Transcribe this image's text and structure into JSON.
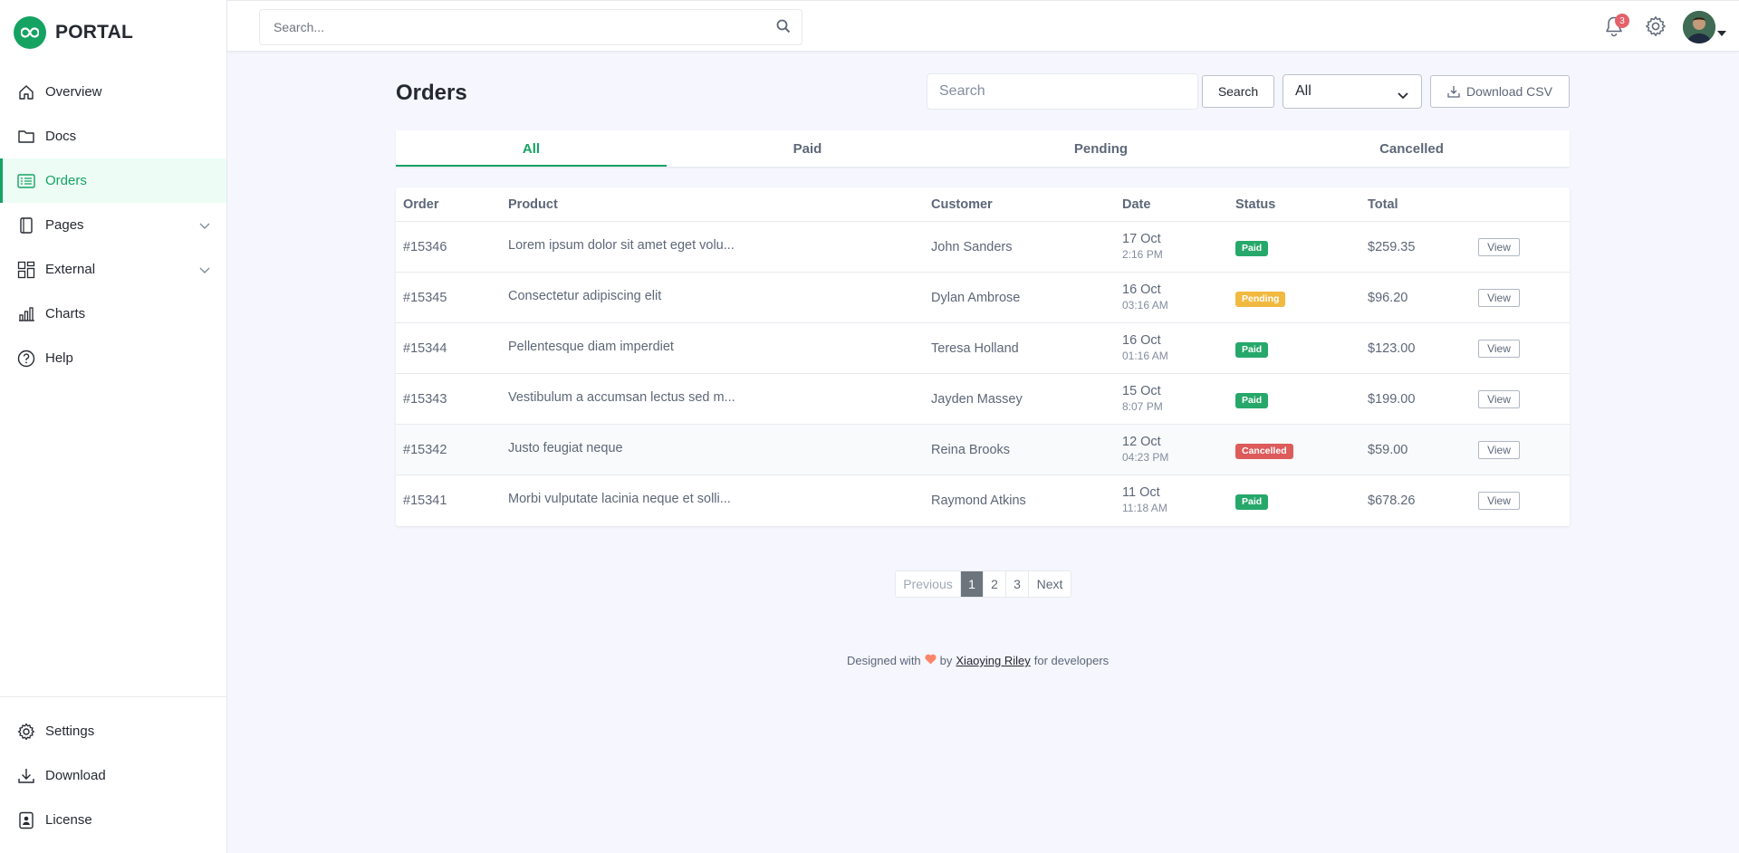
{
  "brand": {
    "name": "PORTAL"
  },
  "colors": {
    "accent": "#15a362",
    "paid": "#27a86b",
    "pending": "#f2b940",
    "cancelled": "#dd5b5b",
    "notification": "#e4626a"
  },
  "sidebar": {
    "items": [
      {
        "label": "Overview",
        "icon": "home-icon"
      },
      {
        "label": "Docs",
        "icon": "folder-icon"
      },
      {
        "label": "Orders",
        "icon": "list-icon",
        "active": true
      },
      {
        "label": "Pages",
        "icon": "pages-icon",
        "expandable": true
      },
      {
        "label": "External",
        "icon": "grid-icon",
        "expandable": true
      },
      {
        "label": "Charts",
        "icon": "bar-chart-icon"
      },
      {
        "label": "Help",
        "icon": "question-icon"
      }
    ],
    "footer_items": [
      {
        "label": "Settings",
        "icon": "gear-icon"
      },
      {
        "label": "Download",
        "icon": "download-icon"
      },
      {
        "label": "License",
        "icon": "license-icon"
      }
    ]
  },
  "header": {
    "search_placeholder": "Search...",
    "notification_count": "3"
  },
  "main": {
    "title": "Orders",
    "search_placeholder": "Search",
    "search_button": "Search",
    "filter_value": "All",
    "download_button": "Download CSV",
    "tabs": [
      {
        "label": "All",
        "active": true
      },
      {
        "label": "Paid"
      },
      {
        "label": "Pending"
      },
      {
        "label": "Cancelled"
      }
    ],
    "columns": [
      "Order",
      "Product",
      "Customer",
      "Date",
      "Status",
      "Total"
    ],
    "rows": [
      {
        "order": "#15346",
        "product": "Lorem ipsum dolor sit amet eget volu...",
        "customer": "John Sanders",
        "date": "17 Oct",
        "time": "2:16 PM",
        "status": "Paid",
        "total": "$259.35",
        "action": "View"
      },
      {
        "order": "#15345",
        "product": "Consectetur adipiscing elit",
        "customer": "Dylan Ambrose",
        "date": "16 Oct",
        "time": "03:16 AM",
        "status": "Pending",
        "total": "$96.20",
        "action": "View"
      },
      {
        "order": "#15344",
        "product": "Pellentesque diam imperdiet",
        "customer": "Teresa Holland",
        "date": "16 Oct",
        "time": "01:16 AM",
        "status": "Paid",
        "total": "$123.00",
        "action": "View"
      },
      {
        "order": "#15343",
        "product": "Vestibulum a accumsan lectus sed m...",
        "customer": "Jayden Massey",
        "date": "15 Oct",
        "time": "8:07 PM",
        "status": "Paid",
        "total": "$199.00",
        "action": "View"
      },
      {
        "order": "#15342",
        "product": "Justo feugiat neque",
        "customer": "Reina Brooks",
        "date": "12 Oct",
        "time": "04:23 PM",
        "status": "Cancelled",
        "total": "$59.00",
        "action": "View"
      },
      {
        "order": "#15341",
        "product": "Morbi vulputate lacinia neque et solli...",
        "customer": "Raymond Atkins",
        "date": "11 Oct",
        "time": "11:18 AM",
        "status": "Paid",
        "total": "$678.26",
        "action": "View"
      }
    ],
    "pagination": {
      "previous": "Previous",
      "pages": [
        "1",
        "2",
        "3"
      ],
      "current": "1",
      "next": "Next"
    }
  },
  "footer": {
    "prefix": "Designed with",
    "by": "by",
    "author": "Xiaoying Riley",
    "suffix": "for developers"
  }
}
